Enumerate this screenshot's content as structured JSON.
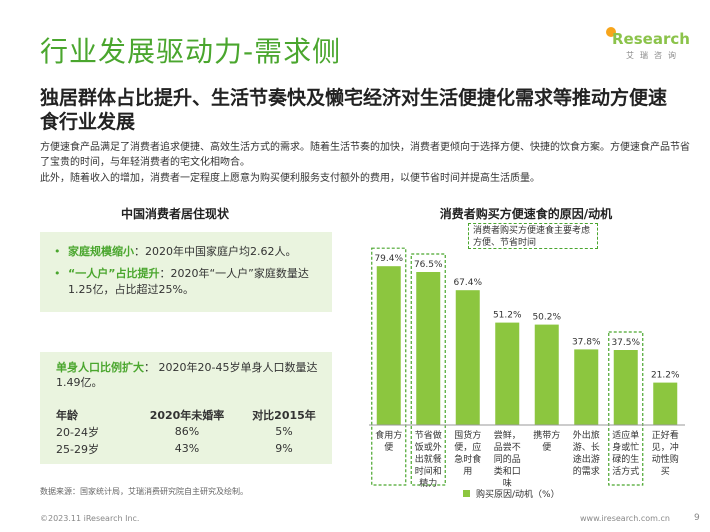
{
  "header": {
    "title": "行业发展驱动力-需求侧",
    "logo_text": "Research",
    "logo_sub": "艾瑞咨询"
  },
  "subtitle": "独居群体占比提升、生活节奏快及懒宅经济对生活便捷化需求等推动方便速食行业发展",
  "paragraphs": [
    "方便速食产品满足了消费者追求便捷、高效生活方式的需求。随着生活节奏的加快，消费者更倾向于选择方便、快捷的饮食方案。方便速食产品节省了宝贵的时间，与年轻消费者的宅文化相吻合。",
    "此外，随着收入的增加，消费者一定程度上愿意为购买便利服务支付额外的费用，以便节省时间并提高生活质量。"
  ],
  "left_panel": {
    "heading": "中国消费者居住现状",
    "bullets": [
      {
        "marker": "•",
        "highlight": "家庭规模缩小",
        "text": "：2020年中国家庭户均2.62人。"
      },
      {
        "marker": "•",
        "highlight": "“一人户”占比提升",
        "text": "：2020年“一人户”家庭数量达1.25亿，占比超过25%。"
      }
    ],
    "single": {
      "highlight": "单身人口比例扩大",
      "text": "： 2020年20-45岁单身人口数量达1.49亿。"
    },
    "table": {
      "headers": [
        "年龄",
        "2020年未婚率",
        "对比2015年"
      ],
      "rows": [
        [
          "20-24岁",
          "86%",
          "5%"
        ],
        [
          "25-29岁",
          "43%",
          "9%"
        ]
      ]
    }
  },
  "chart_data": {
    "type": "bar",
    "title": "消费者购买方便速食的原因/动机",
    "categories": [
      [
        "食用方",
        "便"
      ],
      [
        "节省做",
        "饭或外",
        "出就餐",
        "时间和",
        "精力"
      ],
      [
        "囤货方",
        "便，应",
        "急时食",
        "用"
      ],
      [
        "尝鲜，",
        "品尝不",
        "同的品",
        "类和口",
        "味"
      ],
      [
        "携带方",
        "便"
      ],
      [
        "外出旅",
        "游、长",
        "途出游",
        "的需求"
      ],
      [
        "适应单",
        "身或忙",
        "碌的生",
        "活方式"
      ],
      [
        "正好看",
        "见，冲",
        "动性购",
        "买"
      ]
    ],
    "values": [
      79.4,
      76.5,
      67.4,
      51.2,
      50.2,
      37.8,
      37.5,
      21.2
    ],
    "value_labels": [
      "79.4%",
      "76.5%",
      "67.4%",
      "51.2%",
      "50.2%",
      "37.8%",
      "37.5%",
      "21.2%"
    ],
    "highlighted": [
      0,
      1,
      6
    ],
    "series": [
      {
        "name": "购买原因/动机（%）",
        "values": [
          79.4,
          76.5,
          67.4,
          51.2,
          50.2,
          37.8,
          37.5,
          21.2
        ]
      }
    ],
    "ylim": [
      0,
      100
    ],
    "legend": "bottom",
    "annotation": "消费者购买方便速食主要考虑方便、节省时间",
    "colors": {
      "bar": "#8cc63f",
      "highlight_border": "#4aa62e"
    }
  },
  "footer": {
    "source": "数据来源：国家统计局，艾瑞消费研究院自主研究及绘制。",
    "copyright": "©2023.11 iResearch Inc.",
    "website": "www.iresearch.com.cn",
    "page": "9"
  }
}
